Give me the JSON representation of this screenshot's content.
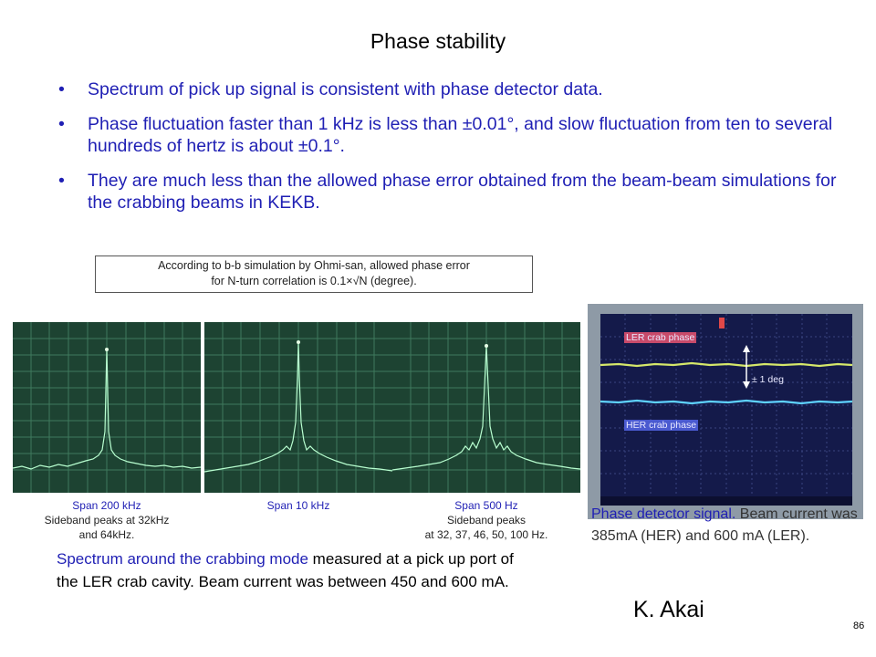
{
  "title": "Phase stability",
  "bullets": [
    "Spectrum of pick up signal is consistent with phase detector data.",
    "Phase fluctuation faster than 1 kHz is less than ±0.01°, and slow fluctuation from ten to several hundreds of hertz is about ±0.1°.",
    "They are much less than the allowed phase error obtained from the beam-beam simulations for the crabbing beams in KEKB."
  ],
  "bullet_symbol": "•",
  "note": {
    "line1": "According to b-b simulation by Ohmi-san, allowed phase error",
    "line2": "for N-turn correlation is 0.1×√N (degree)."
  },
  "spectra": [
    {
      "span_label": "Span 200 kHz",
      "detail1": "Sideband peaks at 32kHz",
      "detail2": "and 64kHz."
    },
    {
      "span_label": "Span 10 kHz",
      "detail1": "",
      "detail2": ""
    },
    {
      "span_label": "Span 500 Hz",
      "detail1": "Sideband peaks",
      "detail2": "at 32, 37, 46, 50, 100 Hz."
    }
  ],
  "spectrum_description": {
    "highlight": "Spectrum around the crabbing mode",
    "rest": " measured at a pick up port of the LER crab cavity. Beam current was between 450 and 600 mA."
  },
  "oscilloscope": {
    "ler_label": "LER crab phase",
    "her_label": "HER crab phase",
    "scale_label": "± 1 deg",
    "caption_highlight": "Phase detector signal.",
    "caption_rest": " Beam current was 385mA (HER) and 600 mA (LER)."
  },
  "author": "K. Akai",
  "page_number": "86",
  "colors": {
    "text_blue": "#1f1fb4",
    "scope_bg": "#1d4332",
    "trace": "#b8ffd0"
  }
}
